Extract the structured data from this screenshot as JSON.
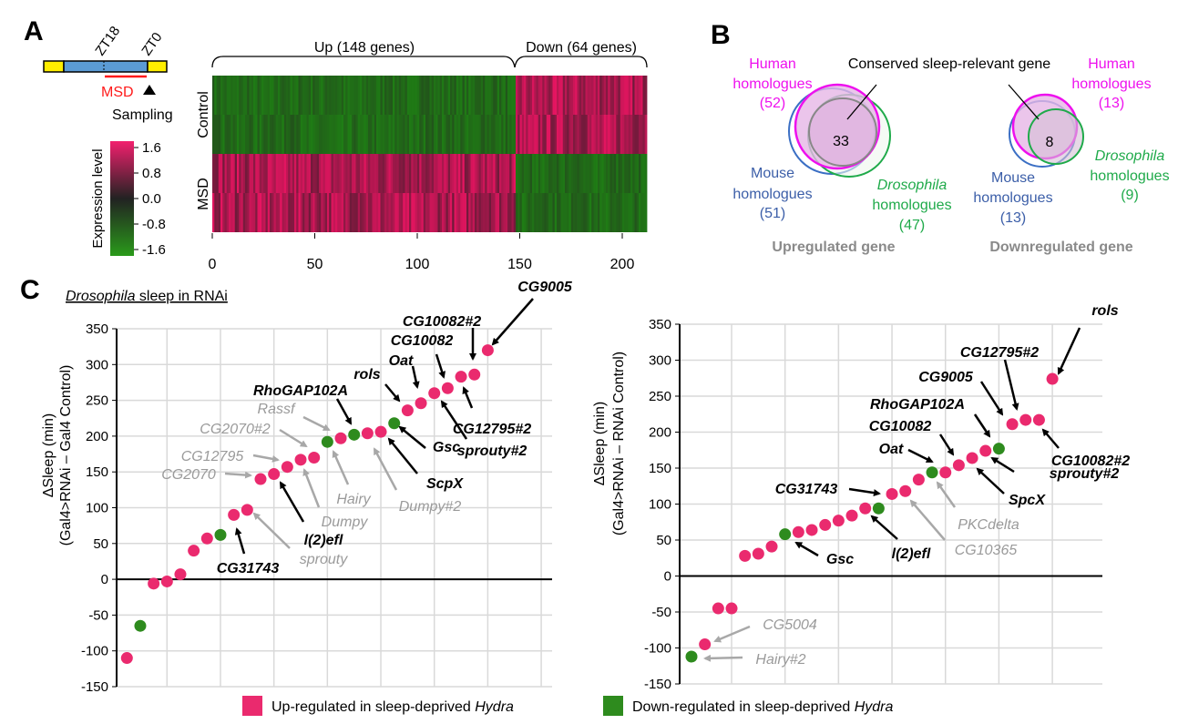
{
  "panels": {
    "a": "A",
    "b": "B",
    "c": "C"
  },
  "colors": {
    "up": "#ea2a6e",
    "down": "#2e8b1e",
    "gray_label": "#9a9a9a",
    "human": "#ee10ee",
    "mouse": "#3b6fc4",
    "drosophila": "#1faa4a",
    "msd": "#ff1a1a"
  },
  "panel_a": {
    "timeline": {
      "zt18": "ZT18",
      "zt0": "ZT0",
      "msd": "MSD",
      "sampling": "Sampling"
    },
    "colorbar": {
      "title": "Expression level",
      "ticks": [
        "1.6",
        "0.8",
        "0.0",
        "-0.8",
        "-1.6"
      ]
    },
    "heatmap": {
      "groups": [
        {
          "label": "Up (148 genes)",
          "count": 148
        },
        {
          "label": "Down (64 genes)",
          "count": 64
        }
      ],
      "conditions": [
        "Control",
        "MSD"
      ],
      "x_ticks": [
        "0",
        "50",
        "100",
        "150",
        "200"
      ]
    }
  },
  "panel_b": {
    "pointer_label": "Conserved sleep-relevant gene",
    "up": {
      "human": [
        "Human",
        "homologues",
        "(52)"
      ],
      "mouse": [
        "Mouse",
        "homologues",
        "(51)"
      ],
      "drosophila": [
        "Drosophila",
        "homologues",
        "(47)"
      ],
      "overlap": "33",
      "caption": "Upregulated gene"
    },
    "down": {
      "human": [
        "Human",
        "homologues",
        "(13)"
      ],
      "mouse": [
        "Mouse",
        "homologues",
        "(13)"
      ],
      "drosophila": [
        "Drosophila",
        "homologues",
        "(9)"
      ],
      "overlap": "8",
      "caption": "Downregulated gene"
    }
  },
  "panel_c": {
    "title_italic": "Drosophila",
    "title_rest": " sleep in RNAi",
    "legend": {
      "up_a": "Up-regulated in sleep-deprived ",
      "up_b": "Hydra",
      "down_a": "Down-regulated in sleep-deprived ",
      "down_b": "Hydra"
    }
  },
  "chart_data": [
    {
      "type": "scatter",
      "ylabel": [
        "ΔSleep (min)",
        "(Gal4>RNAi – Gal4 Control)"
      ],
      "ylim": [
        -150,
        350
      ],
      "y_ticks": [
        "350",
        "300",
        "250",
        "200",
        "150",
        "100",
        "50",
        "0",
        "-50",
        "-100",
        "-150"
      ],
      "grid": true,
      "points": [
        {
          "v": -110,
          "r": "up"
        },
        {
          "v": -65,
          "r": "down"
        },
        {
          "v": -6,
          "r": "up"
        },
        {
          "v": -3,
          "r": "up"
        },
        {
          "v": 7,
          "r": "up"
        },
        {
          "v": 40,
          "r": "up"
        },
        {
          "v": 57,
          "r": "up"
        },
        {
          "v": 62,
          "r": "down"
        },
        {
          "v": 90,
          "r": "up"
        },
        {
          "v": 97,
          "r": "up"
        },
        {
          "v": 140,
          "r": "up"
        },
        {
          "v": 147,
          "r": "up"
        },
        {
          "v": 157,
          "r": "up"
        },
        {
          "v": 167,
          "r": "up"
        },
        {
          "v": 170,
          "r": "up"
        },
        {
          "v": 192,
          "r": "down"
        },
        {
          "v": 197,
          "r": "up"
        },
        {
          "v": 202,
          "r": "down"
        },
        {
          "v": 204,
          "r": "up"
        },
        {
          "v": 206,
          "r": "up"
        },
        {
          "v": 218,
          "r": "down"
        },
        {
          "v": 236,
          "r": "up"
        },
        {
          "v": 246,
          "r": "up"
        },
        {
          "v": 260,
          "r": "up"
        },
        {
          "v": 267,
          "r": "up"
        },
        {
          "v": 283,
          "r": "up"
        },
        {
          "v": 286,
          "r": "up"
        },
        {
          "v": 320,
          "r": "up"
        }
      ],
      "annotations": [
        {
          "text": "CG9005",
          "point": 28,
          "style": "bold"
        },
        {
          "text": "CG10082#2",
          "point": 27,
          "style": "bold"
        },
        {
          "text": "CG10082",
          "point": 25,
          "style": "bold"
        },
        {
          "text": "Oat",
          "point": 23,
          "style": "bold"
        },
        {
          "text": "rols",
          "point": 22,
          "style": "bold"
        },
        {
          "text": "RhoGAP102A",
          "point": 18,
          "style": "bold"
        },
        {
          "text": "Rassf",
          "point": 17,
          "style": "gray"
        },
        {
          "text": "CG2070#2",
          "point": 15,
          "style": "gray"
        },
        {
          "text": "CG12795",
          "point": 13,
          "style": "gray"
        },
        {
          "text": "CG2070",
          "point": 11,
          "style": "gray"
        },
        {
          "text": "Hairy",
          "point": 16,
          "style": "gray"
        },
        {
          "text": "Dumpy",
          "point": 14,
          "style": "gray"
        },
        {
          "text": "Dumpy#2",
          "point": 19,
          "style": "gray"
        },
        {
          "text": "l(2)efl",
          "point": 12,
          "style": "bold"
        },
        {
          "text": "sprouty",
          "point": 10,
          "style": "gray"
        },
        {
          "text": "CG31743",
          "point": 9,
          "style": "bold"
        },
        {
          "text": "Gsc",
          "point": 21,
          "style": "bold"
        },
        {
          "text": "ScpX",
          "point": 20,
          "style": "bold"
        },
        {
          "text": "sprouty#2",
          "point": 24,
          "style": "bold"
        },
        {
          "text": "CG12795#2",
          "point": 26,
          "style": "bold"
        }
      ]
    },
    {
      "type": "scatter",
      "ylabel": [
        "ΔSleep (min)",
        "(Gal4>RNAi – RNAi Control)"
      ],
      "ylim": [
        -150,
        350
      ],
      "y_ticks": [
        "350",
        "300",
        "250",
        "200",
        "150",
        "100",
        "50",
        "0",
        "-50",
        "-100",
        "-150"
      ],
      "grid": true,
      "points": [
        {
          "v": -112,
          "r": "down"
        },
        {
          "v": -95,
          "r": "up"
        },
        {
          "v": -45,
          "r": "up"
        },
        {
          "v": -45,
          "r": "up"
        },
        {
          "v": 28,
          "r": "up"
        },
        {
          "v": 31,
          "r": "up"
        },
        {
          "v": 41,
          "r": "up"
        },
        {
          "v": 58,
          "r": "down"
        },
        {
          "v": 61,
          "r": "up"
        },
        {
          "v": 64,
          "r": "up"
        },
        {
          "v": 71,
          "r": "up"
        },
        {
          "v": 77,
          "r": "up"
        },
        {
          "v": 84,
          "r": "up"
        },
        {
          "v": 94,
          "r": "up"
        },
        {
          "v": 94,
          "r": "down"
        },
        {
          "v": 114,
          "r": "up"
        },
        {
          "v": 118,
          "r": "up"
        },
        {
          "v": 134,
          "r": "up"
        },
        {
          "v": 144,
          "r": "down"
        },
        {
          "v": 144,
          "r": "up"
        },
        {
          "v": 154,
          "r": "up"
        },
        {
          "v": 164,
          "r": "up"
        },
        {
          "v": 174,
          "r": "up"
        },
        {
          "v": 177,
          "r": "down"
        },
        {
          "v": 211,
          "r": "up"
        },
        {
          "v": 217,
          "r": "up"
        },
        {
          "v": 217,
          "r": "up"
        },
        {
          "v": 274,
          "r": "up"
        }
      ],
      "annotations": [
        {
          "text": "rols",
          "point": 28,
          "style": "bold"
        },
        {
          "text": "CG12795#2",
          "point": 26,
          "style": "bold"
        },
        {
          "text": "CG9005",
          "point": 25,
          "style": "bold"
        },
        {
          "text": "RhoGAP102A",
          "point": 24,
          "style": "bold"
        },
        {
          "text": "CG10082",
          "point": 21,
          "style": "bold"
        },
        {
          "text": "Oat",
          "point": 20,
          "style": "bold"
        },
        {
          "text": "CG31743",
          "point": 16,
          "style": "bold"
        },
        {
          "text": "l(2)efl",
          "point": 15,
          "style": "bold"
        },
        {
          "text": "Gsc",
          "point": 8,
          "style": "bold"
        },
        {
          "text": "PKCdelta",
          "point": 19,
          "style": "gray"
        },
        {
          "text": "CG10365",
          "point": 17,
          "style": "gray"
        },
        {
          "text": "SpcX",
          "point": 22,
          "style": "bold"
        },
        {
          "text": "sprouty#2",
          "point": 23,
          "style": "bold"
        },
        {
          "text": "CG10082#2",
          "point": 27,
          "style": "bold"
        },
        {
          "text": "CG5004",
          "point": 2,
          "style": "gray"
        },
        {
          "text": "Hairy#2",
          "point": 1,
          "style": "gray"
        }
      ]
    }
  ]
}
